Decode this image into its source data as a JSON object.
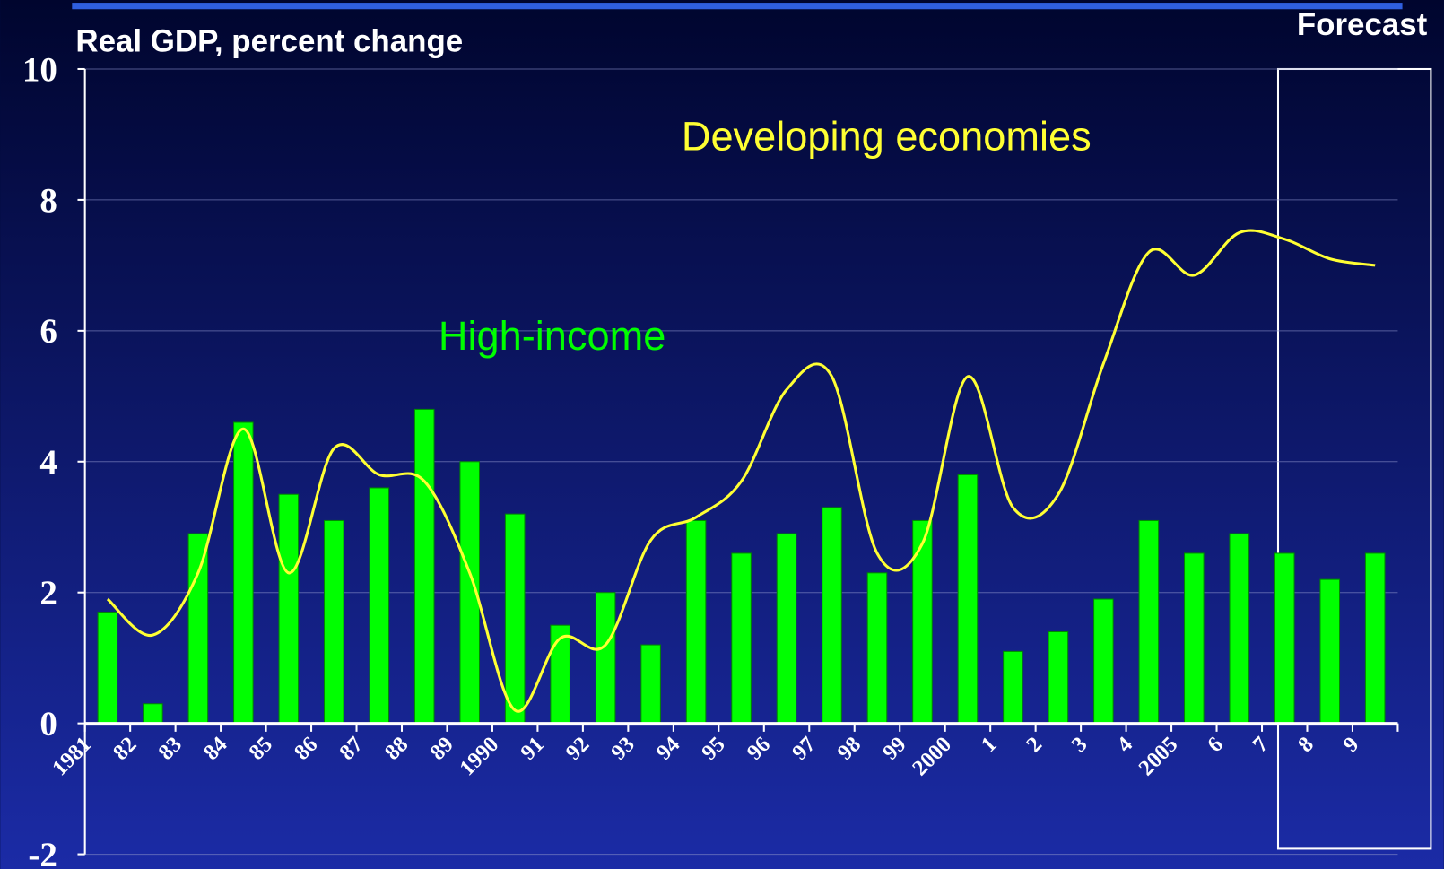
{
  "chart_data": {
    "type": "bar_line",
    "title": "Real GDP, percent change",
    "annotations": [
      "Forecast"
    ],
    "categories": [
      "1981",
      "82",
      "83",
      "84",
      "85",
      "86",
      "87",
      "88",
      "89",
      "1990",
      "91",
      "92",
      "93",
      "94",
      "95",
      "96",
      "97",
      "98",
      "99",
      "2000",
      "1",
      "2",
      "3",
      "4",
      "2005",
      "6",
      "7",
      "8",
      "9"
    ],
    "series": [
      {
        "name": "High-income",
        "color": "#00ff00",
        "type": "bar",
        "values": [
          1.7,
          0.3,
          2.9,
          4.6,
          3.5,
          3.1,
          3.6,
          4.8,
          4.0,
          3.2,
          1.5,
          2.0,
          1.2,
          3.1,
          2.6,
          2.9,
          3.3,
          2.3,
          3.1,
          3.8,
          1.1,
          1.4,
          1.9,
          3.1,
          2.6,
          2.9,
          2.6,
          2.2,
          2.6
        ]
      },
      {
        "name": "Developing economies",
        "color": "#ffff33",
        "type": "line",
        "values": [
          1.9,
          1.35,
          2.3,
          4.5,
          2.3,
          4.2,
          3.8,
          3.7,
          2.3,
          0.2,
          1.3,
          1.2,
          2.8,
          3.15,
          3.7,
          5.1,
          5.3,
          2.6,
          2.75,
          5.3,
          3.3,
          3.5,
          5.5,
          7.2,
          6.85,
          7.5,
          7.4,
          7.1,
          7.0
        ]
      }
    ],
    "ylim": [
      -2,
      10
    ],
    "yticks": [
      -2,
      0,
      2,
      4,
      6,
      8,
      10
    ],
    "grid": true
  }
}
